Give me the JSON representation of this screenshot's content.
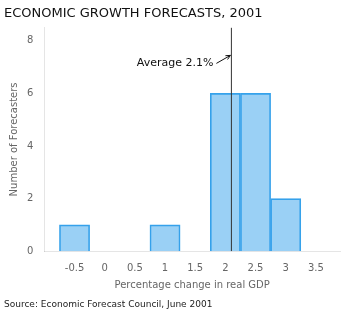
{
  "chart_data": {
    "type": "bar",
    "title": "ECONOMIC GROWTH FORECASTS, 2001",
    "xlabel": "Percentage change in real GDP",
    "ylabel": "Number of Forecasters",
    "source": "Source: Economic Forecast Council, June 2001",
    "x": [
      -0.5,
      1,
      2,
      2.5,
      3
    ],
    "values": [
      1,
      1,
      6,
      6,
      2
    ],
    "xlim": [
      -1.0,
      3.9
    ],
    "xticks": [
      -0.5,
      0,
      0.5,
      1,
      1.5,
      2,
      2.5,
      3,
      3.5
    ],
    "ylim": [
      0,
      8.5
    ],
    "yticks": [
      0,
      2,
      4,
      6,
      8
    ],
    "grid": false,
    "annotations": [
      {
        "text": "Average 2.1%",
        "x": 2.1
      }
    ]
  }
}
